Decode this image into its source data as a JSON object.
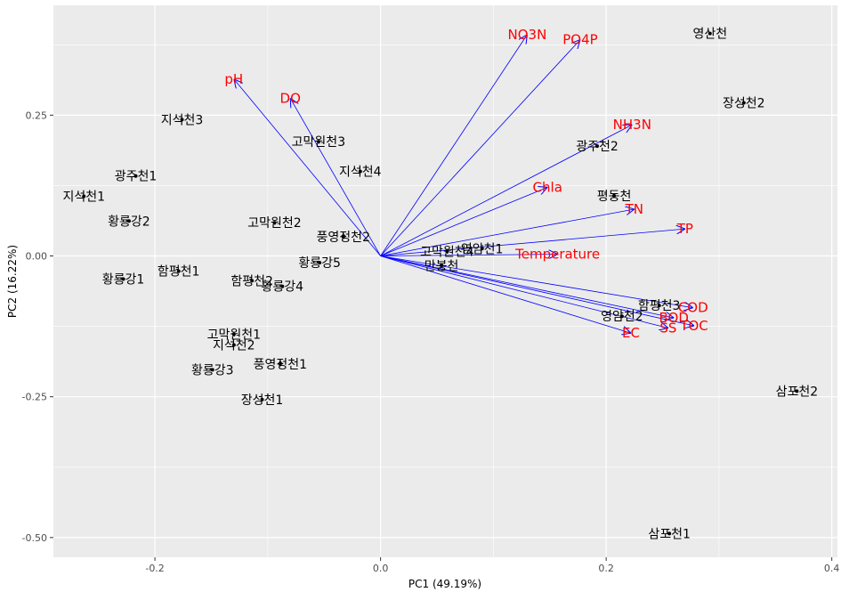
{
  "chart_data": {
    "type": "scatter",
    "subtype": "pca-biplot",
    "xlabel": "PC1 (49.19%)",
    "ylabel": "PC2 (16.22%)",
    "xlim": [
      -0.29,
      0.405
    ],
    "ylim": [
      -0.535,
      0.445
    ],
    "x_ticks": [
      -0.2,
      0.0,
      0.2,
      0.4
    ],
    "x_tick_labels": [
      "-0.2",
      "0.0",
      "0.2",
      "0.4"
    ],
    "y_ticks": [
      -0.5,
      -0.25,
      0.0,
      0.25
    ],
    "y_tick_labels": [
      "-0.50",
      "-0.25",
      "0.00",
      "0.25"
    ],
    "grid": true,
    "colors": {
      "panel": "#ebebeb",
      "grid": "#ffffff",
      "arrow": "#0000ff",
      "variable_label": "#ff0000",
      "point": "#000000"
    },
    "points": [
      {
        "label": "영산천",
        "x": 0.292,
        "y": 0.395
      },
      {
        "label": "장성천2",
        "x": 0.322,
        "y": 0.272
      },
      {
        "label": "지석천3",
        "x": -0.176,
        "y": 0.242
      },
      {
        "label": "고막원천3",
        "x": -0.055,
        "y": 0.203
      },
      {
        "label": "광주천2",
        "x": 0.192,
        "y": 0.195
      },
      {
        "label": "지석천4",
        "x": -0.018,
        "y": 0.15
      },
      {
        "label": "광주천1",
        "x": -0.217,
        "y": 0.142
      },
      {
        "label": "지석천1",
        "x": -0.263,
        "y": 0.106
      },
      {
        "label": "평동천",
        "x": 0.207,
        "y": 0.107
      },
      {
        "label": "황룡강2",
        "x": -0.223,
        "y": 0.062
      },
      {
        "label": "고막원천2",
        "x": -0.094,
        "y": 0.059
      },
      {
        "label": "풍영정천2",
        "x": -0.033,
        "y": 0.034
      },
      {
        "label": "고막원천4",
        "x": 0.059,
        "y": 0.008
      },
      {
        "label": "영암천1",
        "x": 0.09,
        "y": 0.013
      },
      {
        "label": "황룡강5",
        "x": -0.054,
        "y": -0.012
      },
      {
        "label": "만봉천",
        "x": 0.054,
        "y": -0.017
      },
      {
        "label": "함평천1",
        "x": -0.179,
        "y": -0.027
      },
      {
        "label": "황룡강1",
        "x": -0.228,
        "y": -0.041
      },
      {
        "label": "함평천2",
        "x": -0.114,
        "y": -0.044
      },
      {
        "label": "황룡강4",
        "x": -0.087,
        "y": -0.054
      },
      {
        "label": "함평천3",
        "x": 0.247,
        "y": -0.088
      },
      {
        "label": "영암천2",
        "x": 0.214,
        "y": -0.107
      },
      {
        "label": "고막원천1",
        "x": -0.13,
        "y": -0.139
      },
      {
        "label": "지석천2",
        "x": -0.13,
        "y": -0.158
      },
      {
        "label": "풍영정천1",
        "x": -0.089,
        "y": -0.192
      },
      {
        "label": "황룡강3",
        "x": -0.149,
        "y": -0.202
      },
      {
        "label": "장성천1",
        "x": -0.105,
        "y": -0.255
      },
      {
        "label": "삼포천2",
        "x": 0.369,
        "y": -0.24
      },
      {
        "label": "삼포천1",
        "x": 0.256,
        "y": -0.493
      }
    ],
    "loadings": [
      {
        "label": "NO3N",
        "x": 0.13,
        "y": 0.393
      },
      {
        "label": "PO4P",
        "x": 0.177,
        "y": 0.384
      },
      {
        "label": "pH",
        "x": -0.13,
        "y": 0.314
      },
      {
        "label": "DO",
        "x": -0.08,
        "y": 0.28
      },
      {
        "label": "NH3N",
        "x": 0.223,
        "y": 0.233
      },
      {
        "label": "Chla",
        "x": 0.148,
        "y": 0.122
      },
      {
        "label": "TN",
        "x": 0.225,
        "y": 0.083
      },
      {
        "label": "TP",
        "x": 0.27,
        "y": 0.048
      },
      {
        "label": "Temperature",
        "x": 0.157,
        "y": 0.003
      },
      {
        "label": "COD",
        "x": 0.277,
        "y": -0.092
      },
      {
        "label": "SS",
        "x": 0.255,
        "y": -0.128
      },
      {
        "label": "TOC",
        "x": 0.278,
        "y": -0.124
      },
      {
        "label": "EC",
        "x": 0.222,
        "y": -0.137
      },
      {
        "label": "BOD",
        "x": 0.26,
        "y": -0.11
      }
    ]
  }
}
